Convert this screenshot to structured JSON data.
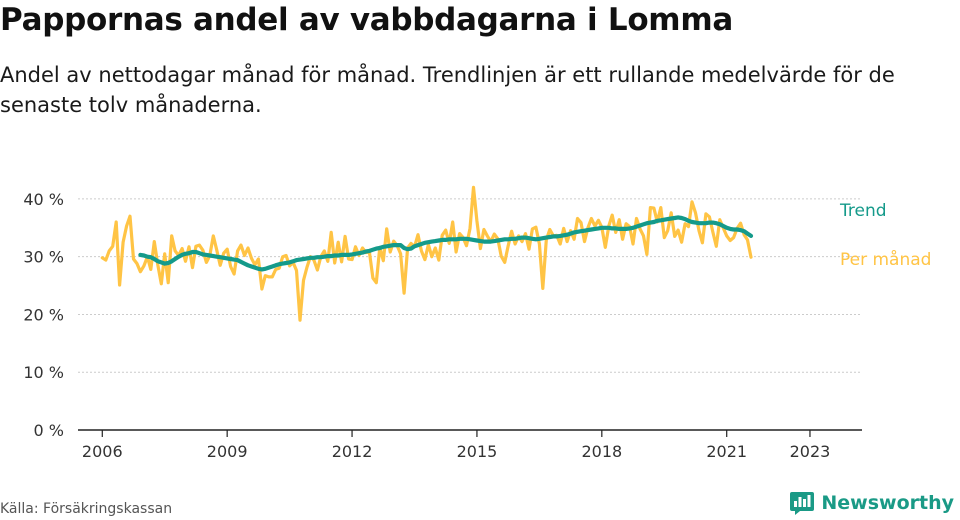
{
  "header": {
    "title": "Pappornas andel av vabbdagarna i Lomma",
    "subtitle": "Andel av nettodagar månad för månad. Trendlinjen är ett rullande medelvärde för de senaste tolv månaderna."
  },
  "footer": {
    "source": "Källa: Försäkringskassan",
    "brand": "Newsworthy"
  },
  "colors": {
    "trend": "#149a8a",
    "monthly": "#ffc445",
    "brand": "#1a9a86",
    "axis": "#222222",
    "grid": "#cccccc"
  },
  "icons": {
    "brand": "bar-chart-speech-icon"
  },
  "chart_data": {
    "type": "line",
    "title": "Pappornas andel av vabbdagarna i Lomma",
    "xlabel": "",
    "ylabel": "",
    "x_ticks": [
      "2006",
      "2009",
      "2012",
      "2015",
      "2018",
      "2021",
      "2023"
    ],
    "y_ticks": [
      "0 %",
      "10 %",
      "20 %",
      "30 %",
      "40 %"
    ],
    "ylim": [
      0,
      45
    ],
    "xlim": [
      "2005-06",
      "2024-04"
    ],
    "grid": "horizontal",
    "series": [
      {
        "name": "Trend",
        "frequency": "monthly",
        "start": "2006-12",
        "values": [
          30.3,
          30.2,
          30.0,
          29.9,
          29.6,
          29.2,
          29.0,
          28.8,
          28.9,
          29.2,
          29.6,
          30.0,
          30.3,
          30.5,
          30.6,
          30.8,
          30.8,
          30.6,
          30.4,
          30.3,
          30.2,
          30.1,
          30.0,
          29.9,
          29.8,
          29.7,
          29.6,
          29.5,
          29.4,
          29.1,
          28.8,
          28.5,
          28.3,
          28.1,
          27.9,
          27.8,
          27.9,
          28.1,
          28.3,
          28.5,
          28.7,
          28.8,
          28.9,
          29.0,
          29.2,
          29.4,
          29.5,
          29.6,
          29.7,
          29.8,
          29.8,
          29.9,
          29.9,
          30.0,
          30.1,
          30.1,
          30.2,
          30.2,
          30.3,
          30.3,
          30.3,
          30.4,
          30.5,
          30.6,
          30.7,
          30.9,
          31.0,
          31.2,
          31.4,
          31.5,
          31.7,
          31.8,
          31.9,
          32.0,
          32.0,
          32.0,
          31.5,
          31.3,
          31.4,
          31.8,
          32.0,
          32.2,
          32.4,
          32.5,
          32.6,
          32.7,
          32.8,
          32.9,
          32.9,
          33.0,
          33.0,
          33.0,
          33.1,
          33.1,
          33.1,
          33.0,
          32.9,
          32.8,
          32.7,
          32.6,
          32.6,
          32.6,
          32.7,
          32.8,
          32.9,
          33.0,
          33.0,
          33.1,
          33.1,
          33.2,
          33.3,
          33.3,
          33.2,
          33.1,
          33.0,
          33.1,
          33.2,
          33.3,
          33.4,
          33.5,
          33.5,
          33.6,
          33.7,
          33.8,
          34.0,
          34.2,
          34.3,
          34.4,
          34.5,
          34.6,
          34.7,
          34.8,
          34.9,
          35.0,
          35.0,
          35.0,
          34.9,
          34.9,
          34.8,
          34.8,
          34.8,
          34.9,
          35.0,
          35.2,
          35.4,
          35.6,
          35.8,
          35.9,
          36.0,
          36.2,
          36.3,
          36.4,
          36.5,
          36.6,
          36.7,
          36.8,
          36.7,
          36.5,
          36.2,
          36.0,
          35.9,
          35.8,
          35.8,
          35.8,
          35.9,
          35.9,
          35.8,
          35.6,
          35.3,
          35.0,
          34.8,
          34.7,
          34.7,
          34.6,
          34.4,
          34.0,
          33.6
        ]
      },
      {
        "name": "Per månad",
        "frequency": "monthly",
        "start": "2006-01",
        "values": [
          29.8,
          29.4,
          31.0,
          31.8,
          36.0,
          25.1,
          32.5,
          35.3,
          37.0,
          29.6,
          28.8,
          27.4,
          28.4,
          30.0,
          27.8,
          32.6,
          28.6,
          25.3,
          30.5,
          25.5,
          33.6,
          31.0,
          30.2,
          31.4,
          29.2,
          31.7,
          28.1,
          31.8,
          32.0,
          31.1,
          29.0,
          30.2,
          33.6,
          31.1,
          28.5,
          30.6,
          31.3,
          28.3,
          27.0,
          31.0,
          32.0,
          30.2,
          31.5,
          29.7,
          28.6,
          29.6,
          24.4,
          26.7,
          26.5,
          26.5,
          27.8,
          28.0,
          30.0,
          30.2,
          28.4,
          29.0,
          27.6,
          19.0,
          25.9,
          28.2,
          30.0,
          29.4,
          27.7,
          30.0,
          31.0,
          29.2,
          34.2,
          28.9,
          32.5,
          29.1,
          33.5,
          29.6,
          29.5,
          31.7,
          30.2,
          31.5,
          30.7,
          30.8,
          26.3,
          25.5,
          31.6,
          29.3,
          34.8,
          30.8,
          32.7,
          31.9,
          30.5,
          23.7,
          31.5,
          32.3,
          31.7,
          33.8,
          31.0,
          29.5,
          32.1,
          30.0,
          31.5,
          29.4,
          33.7,
          34.6,
          32.3,
          36.0,
          30.8,
          34.0,
          33.3,
          31.9,
          34.9,
          42.0,
          36.2,
          31.4,
          34.7,
          33.6,
          32.6,
          33.9,
          33.1,
          30.1,
          29.0,
          31.9,
          34.4,
          32.2,
          33.6,
          32.6,
          34.0,
          31.3,
          34.8,
          35.1,
          32.2,
          24.5,
          32.9,
          34.7,
          33.6,
          33.7,
          32.2,
          34.9,
          32.6,
          34.5,
          33.0,
          36.6,
          35.9,
          32.6,
          35.0,
          36.6,
          35.3,
          36.3,
          35.1,
          31.6,
          35.3,
          37.2,
          34.2,
          36.4,
          33.0,
          35.7,
          35.2,
          32.2,
          36.6,
          34.8,
          33.6,
          30.4,
          38.5,
          38.4,
          36.0,
          38.5,
          33.3,
          34.5,
          37.6,
          33.5,
          34.6,
          32.5,
          35.7,
          35.2,
          39.5,
          37.6,
          34.5,
          32.4,
          37.4,
          36.9,
          34.3,
          31.8,
          36.4,
          35.0,
          33.6,
          32.8,
          33.3,
          34.9,
          35.8,
          33.8,
          32.9,
          29.9
        ]
      }
    ]
  }
}
